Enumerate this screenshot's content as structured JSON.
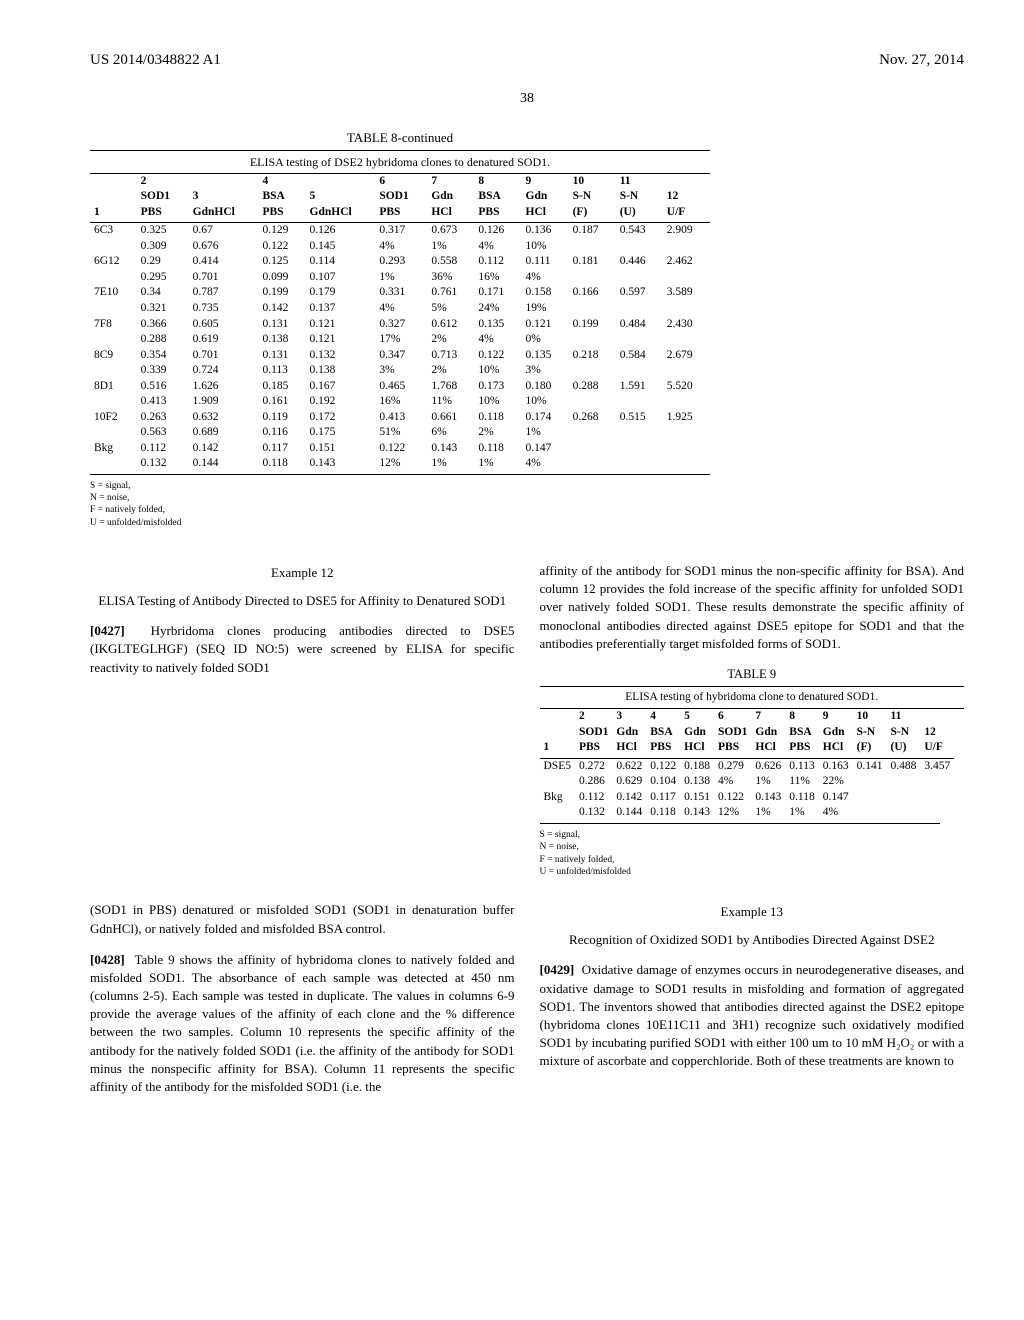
{
  "header": {
    "left": "US 2014/0348822 A1",
    "right": "Nov. 27, 2014"
  },
  "page_number": "38",
  "table8": {
    "title": "TABLE 8-continued",
    "subtitle": "ELISA testing of DSE2 hybridoma clones to denatured SOD1.",
    "head_rows": [
      [
        "",
        "2",
        "",
        "4",
        "",
        "6",
        "7",
        "8",
        "9",
        "10",
        "11",
        ""
      ],
      [
        "",
        "SOD1",
        "3",
        "BSA",
        "5",
        "SOD1",
        "Gdn",
        "BSA",
        "Gdn",
        "S-N",
        "S-N",
        "12"
      ],
      [
        "1",
        "PBS",
        "GdnHCl",
        "PBS",
        "GdnHCl",
        "PBS",
        "HCl",
        "PBS",
        "HCl",
        "(F)",
        "(U)",
        "U/F"
      ]
    ],
    "body": [
      [
        "6C3",
        "0.325",
        "0.67",
        "0.129",
        "0.126",
        "0.317",
        "0.673",
        "0.126",
        "0.136",
        "0.187",
        "0.543",
        "2.909"
      ],
      [
        "",
        "0.309",
        "0.676",
        "0.122",
        "0.145",
        "4%",
        "1%",
        "4%",
        "10%",
        "",
        "",
        ""
      ],
      [
        "6G12",
        "0.29",
        "0.414",
        "0.125",
        "0.114",
        "0.293",
        "0.558",
        "0.112",
        "0.111",
        "0.181",
        "0.446",
        "2.462"
      ],
      [
        "",
        "0.295",
        "0.701",
        "0.099",
        "0.107",
        "1%",
        "36%",
        "16%",
        "4%",
        "",
        "",
        ""
      ],
      [
        "7E10",
        "0.34",
        "0.787",
        "0.199",
        "0.179",
        "0.331",
        "0.761",
        "0.171",
        "0.158",
        "0.166",
        "0.597",
        "3.589"
      ],
      [
        "",
        "0.321",
        "0.735",
        "0.142",
        "0.137",
        "4%",
        "5%",
        "24%",
        "19%",
        "",
        "",
        ""
      ],
      [
        "7F8",
        "0.366",
        "0.605",
        "0.131",
        "0.121",
        "0.327",
        "0.612",
        "0.135",
        "0.121",
        "0.199",
        "0.484",
        "2.430"
      ],
      [
        "",
        "0.288",
        "0.619",
        "0.138",
        "0.121",
        "17%",
        "2%",
        "4%",
        "0%",
        "",
        "",
        ""
      ],
      [
        "8C9",
        "0.354",
        "0.701",
        "0.131",
        "0.132",
        "0.347",
        "0.713",
        "0.122",
        "0.135",
        "0.218",
        "0.584",
        "2.679"
      ],
      [
        "",
        "0.339",
        "0.724",
        "0.113",
        "0.138",
        "3%",
        "2%",
        "10%",
        "3%",
        "",
        "",
        ""
      ],
      [
        "8D1",
        "0.516",
        "1.626",
        "0.185",
        "0.167",
        "0.465",
        "1.768",
        "0.173",
        "0.180",
        "0.288",
        "1.591",
        "5.520"
      ],
      [
        "",
        "0.413",
        "1.909",
        "0.161",
        "0.192",
        "16%",
        "11%",
        "10%",
        "10%",
        "",
        "",
        ""
      ],
      [
        "10F2",
        "0.263",
        "0.632",
        "0.119",
        "0.172",
        "0.413",
        "0.661",
        "0.118",
        "0.174",
        "0.268",
        "0.515",
        "1.925"
      ],
      [
        "",
        "0.563",
        "0.689",
        "0.116",
        "0.175",
        "51%",
        "6%",
        "2%",
        "1%",
        "",
        "",
        ""
      ],
      [
        "Bkg",
        "0.112",
        "0.142",
        "0.117",
        "0.151",
        "0.122",
        "0.143",
        "0.118",
        "0.147",
        "",
        "",
        ""
      ],
      [
        "",
        "0.132",
        "0.144",
        "0.118",
        "0.143",
        "12%",
        "1%",
        "1%",
        "4%",
        "",
        "",
        ""
      ]
    ],
    "footnotes": [
      "S = signal,",
      "N = noise,",
      "F = natively folded,",
      "U = unfolded/misfolded"
    ]
  },
  "example12": {
    "label": "Example 12",
    "title": "ELISA Testing of Antibody Directed to DSE5 for Affinity to Denatured SOD1",
    "para427": "Hyrbridoma clones producing antibodies directed to DSE5 (IKGLTEGLHGF) (SEQ ID NO:5) were screened by ELISA for specific reactivity to natively folded SOD1",
    "right_para_continue": "affinity of the antibody for SOD1 minus the non-specific affinity for BSA). And column 12 provides the fold increase of the specific affinity for unfolded SOD1 over natively folded SOD1. These results demonstrate the specific affinity of monoclonal antibodies directed against DSE5 epitope for SOD1 and that the antibodies preferentially target misfolded forms of SOD1."
  },
  "table9": {
    "title": "TABLE 9",
    "subtitle": "ELISA testing of hybridoma clone to denatured SOD1.",
    "head_rows": [
      [
        "",
        "2",
        "3",
        "4",
        "5",
        "6",
        "7",
        "8",
        "9",
        "10",
        "11",
        ""
      ],
      [
        "",
        "SOD1",
        "Gdn",
        "BSA",
        "Gdn",
        "SOD1",
        "Gdn",
        "BSA",
        "Gdn",
        "S-N",
        "S-N",
        "12"
      ],
      [
        "1",
        "PBS",
        "HCl",
        "PBS",
        "HCl",
        "PBS",
        "HCl",
        "PBS",
        "HCl",
        "(F)",
        "(U)",
        "U/F"
      ]
    ],
    "body": [
      [
        "DSE5",
        "0.272",
        "0.622",
        "0.122",
        "0.188",
        "0.279",
        "0.626",
        "0.113",
        "0.163",
        "0.141",
        "0.488",
        "3.457"
      ],
      [
        "",
        "0.286",
        "0.629",
        "0.104",
        "0.138",
        "4%",
        "1%",
        "11%",
        "22%",
        "",
        "",
        ""
      ],
      [
        "Bkg",
        "0.112",
        "0.142",
        "0.117",
        "0.151",
        "0.122",
        "0.143",
        "0.118",
        "0.147",
        "",
        "",
        ""
      ],
      [
        "",
        "0.132",
        "0.144",
        "0.118",
        "0.143",
        "12%",
        "1%",
        "1%",
        "4%",
        "",
        "",
        ""
      ]
    ],
    "footnotes": [
      "S = signal,",
      "N = noise,",
      "F = natively folded,",
      "U = unfolded/misfolded"
    ]
  },
  "bottom_left": {
    "para_top": "(SOD1 in PBS) denatured or misfolded SOD1 (SOD1 in denaturation buffer GdnHCl), or natively folded and misfolded BSA control.",
    "para428": "Table 9 shows the affinity of hybridoma clones to natively folded and misfolded SOD1. The absorbance of each sample was detected at 450 nm (columns 2-5). Each sample was tested in duplicate. The values in columns 6-9 provide the average values of the affinity of each clone and the % difference between the two samples. Column 10 represents the specific affinity of the antibody for the natively folded SOD1 (i.e. the affinity of the antibody for SOD1 minus the nonspecific affinity for BSA). Column 11 represents the specific affinity of the antibody for the misfolded SOD1 (i.e. the"
  },
  "example13": {
    "label": "Example 13",
    "title": "Recognition of Oxidized SOD1 by Antibodies Directed Against DSE2",
    "para429": "Oxidative damage of enzymes occurs in neurodegenerative diseases, and oxidative damage to SOD1 results in misfolding and formation of aggregated SOD1. The inventors showed that antibodies directed against the DSE2 epitope (hybridoma clones 10E11C11 and 3H1) recognize such oxidatively modified SOD1 by incubating purified SOD1 with either 100 um to 10 mM H₂O₂ or with a mixture of ascorbate and copperchloride. Both of these treatments are known to"
  }
}
